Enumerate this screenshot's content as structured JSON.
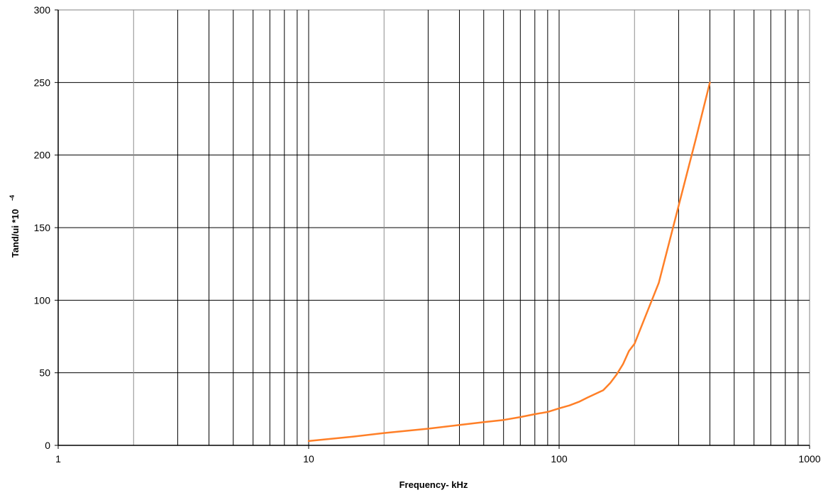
{
  "chart_data": {
    "type": "line",
    "xlabel": "Frequency- kHz",
    "ylabel": "Tand/ui *10",
    "ylabel_exponent": "-4",
    "x_scale": "log",
    "xlim": [
      1,
      1000
    ],
    "ylim": [
      0,
      300
    ],
    "x_ticks": [
      "1",
      "10",
      "100",
      "1000"
    ],
    "y_ticks": [
      "0",
      "50",
      "100",
      "150",
      "200",
      "250",
      "300"
    ],
    "grid": true,
    "line_color": "#ff7f27",
    "series": [
      {
        "x": [
          10,
          15,
          20,
          30,
          40,
          50,
          60,
          70,
          80,
          90,
          100,
          110,
          120,
          130,
          150,
          160,
          170,
          180,
          190,
          200,
          220,
          250,
          300,
          350,
          400
        ],
        "y": [
          3,
          6,
          8.5,
          11.5,
          14,
          16,
          17.5,
          19.5,
          21.5,
          23,
          25.5,
          27.5,
          30,
          33,
          38,
          43,
          49,
          56,
          65,
          70,
          88,
          112,
          165,
          210,
          250
        ]
      }
    ]
  }
}
